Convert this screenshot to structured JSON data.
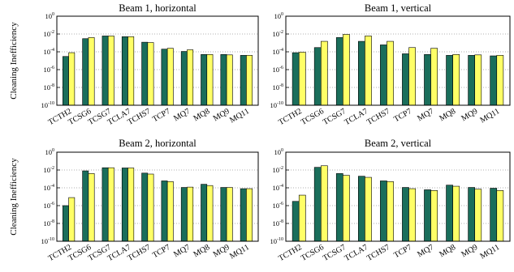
{
  "figure": {
    "ylabel": "Cleaning Inefficiency"
  },
  "chart_data": [
    {
      "type": "bar",
      "title": "Beam 1, horizontal",
      "ylabel": "Cleaning Inefficiency",
      "yscale": "log",
      "ylim": [
        1e-10,
        1
      ],
      "ytick_exponents": [
        0,
        -2,
        -4,
        -6,
        -8,
        -10
      ],
      "grid": "horizontal dotted",
      "categories": [
        "TCTH2",
        "TCSG6",
        "TCSG7",
        "TCLA7",
        "TCHS7",
        "TCP7",
        "MQ7",
        "MQ8",
        "MQ9",
        "MQ11"
      ],
      "series": [
        {
          "color": "#1a6e5b",
          "values": [
            3e-05,
            0.003,
            0.006,
            0.005,
            0.0012,
            0.0002,
            0.00011,
            5e-05,
            5e-05,
            4e-05
          ]
        },
        {
          "color": "#ffff66",
          "values": [
            8e-05,
            0.004,
            0.006,
            0.005,
            0.0011,
            0.00025,
            0.00017,
            5e-05,
            4.5e-05,
            4e-05
          ]
        }
      ]
    },
    {
      "type": "bar",
      "title": "Beam 1, vertical",
      "yscale": "log",
      "ylim": [
        1e-10,
        1
      ],
      "ytick_exponents": [
        0,
        -2,
        -4,
        -6,
        -8,
        -10
      ],
      "grid": "horizontal dotted",
      "categories": [
        "TCTH2",
        "TCSG6",
        "TCSG7",
        "TCLA7",
        "TCHS7",
        "TCP7",
        "MQ7",
        "MQ8",
        "MQ9",
        "MQ11"
      ],
      "series": [
        {
          "color": "#1a6e5b",
          "values": [
            8e-05,
            0.0003,
            0.004,
            0.0015,
            0.0006,
            6e-05,
            5e-05,
            4e-05,
            4e-05,
            3.5e-05
          ]
        },
        {
          "color": "#ffff66",
          "values": [
            9e-05,
            0.0015,
            0.009,
            0.006,
            0.0015,
            0.0003,
            0.00025,
            5e-05,
            4.5e-05,
            4e-05
          ]
        }
      ]
    },
    {
      "type": "bar",
      "title": "Beam 2, horizontal",
      "ylabel": "Cleaning Inefficiency",
      "yscale": "log",
      "ylim": [
        1e-10,
        1
      ],
      "ytick_exponents": [
        0,
        -2,
        -4,
        -6,
        -8,
        -10
      ],
      "grid": "horizontal dotted",
      "categories": [
        "TCTH2",
        "TCSG6",
        "TCSG7",
        "TCLA7",
        "TCHS7",
        "TCP7",
        "MQ7",
        "MQ8",
        "MQ9",
        "MQ11"
      ],
      "series": [
        {
          "color": "#1a6e5b",
          "values": [
            1e-06,
            0.008,
            0.018,
            0.017,
            0.0045,
            0.0006,
            0.00011,
            0.00025,
            0.00011,
            8e-05
          ]
        },
        {
          "color": "#ffff66",
          "values": [
            8e-06,
            0.004,
            0.018,
            0.017,
            0.0035,
            0.0005,
            0.00012,
            0.00018,
            0.00011,
            8e-05
          ]
        }
      ]
    },
    {
      "type": "bar",
      "title": "Beam 2, vertical",
      "yscale": "log",
      "ylim": [
        1e-10,
        1
      ],
      "ytick_exponents": [
        0,
        -2,
        -4,
        -6,
        -8,
        -10
      ],
      "grid": "horizontal dotted",
      "categories": [
        "TCTH2",
        "TCSG6",
        "TCSG7",
        "TCLA7",
        "TCHS7",
        "TCP7",
        "MQ7",
        "MQ8",
        "MQ9",
        "MQ11"
      ],
      "series": [
        {
          "color": "#1a6e5b",
          "values": [
            3e-06,
            0.02,
            0.004,
            0.002,
            0.0006,
            0.00011,
            6e-05,
            0.0002,
            0.00011,
            9e-05
          ]
        },
        {
          "color": "#ffff66",
          "values": [
            1.5e-05,
            0.03,
            0.0025,
            0.0015,
            0.0005,
            8e-05,
            5e-05,
            0.00015,
            7e-05,
            5e-05
          ]
        }
      ]
    }
  ]
}
